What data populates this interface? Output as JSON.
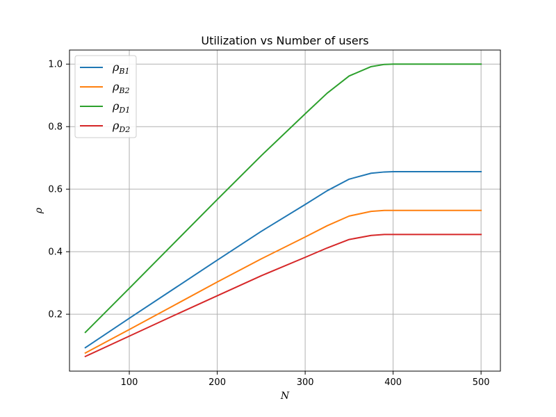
{
  "chart_data": {
    "type": "line",
    "title": "Utilization vs Number of users",
    "xlabel": "N",
    "ylabel": "ρ",
    "xlim": [
      32,
      522
    ],
    "ylim": [
      0.018,
      1.045
    ],
    "xticks": [
      100,
      200,
      300,
      400,
      500
    ],
    "yticks": [
      0.2,
      0.4,
      0.6,
      0.8,
      1.0
    ],
    "xtick_labels": [
      "100",
      "200",
      "300",
      "400",
      "500"
    ],
    "ytick_labels": [
      "0.2",
      "0.4",
      "0.6",
      "0.8",
      "1.0"
    ],
    "grid": true,
    "legend_position": "top-left",
    "series": [
      {
        "name": "ρB1",
        "label_main": "ρ",
        "label_sub": "B1",
        "color": "#1f77b4",
        "x": [
          50,
          100,
          150,
          200,
          250,
          300,
          325,
          350,
          375,
          390,
          400,
          420,
          450,
          500
        ],
        "y": [
          0.093,
          0.187,
          0.28,
          0.373,
          0.465,
          0.551,
          0.595,
          0.632,
          0.651,
          0.655,
          0.656,
          0.656,
          0.656,
          0.656
        ]
      },
      {
        "name": "ρB2",
        "label_main": "ρ",
        "label_sub": "B2",
        "color": "#ff7f0e",
        "x": [
          50,
          100,
          150,
          200,
          250,
          300,
          325,
          350,
          375,
          390,
          400,
          420,
          450,
          500
        ],
        "y": [
          0.076,
          0.151,
          0.227,
          0.303,
          0.377,
          0.447,
          0.483,
          0.514,
          0.529,
          0.532,
          0.532,
          0.532,
          0.532,
          0.532
        ]
      },
      {
        "name": "ρD1",
        "label_main": "ρ",
        "label_sub": "D1",
        "color": "#2ca02c",
        "x": [
          50,
          100,
          150,
          200,
          250,
          300,
          325,
          350,
          375,
          390,
          400,
          420,
          450,
          500
        ],
        "y": [
          0.142,
          0.283,
          0.425,
          0.567,
          0.707,
          0.841,
          0.907,
          0.962,
          0.992,
          0.999,
          1.0,
          1.0,
          1.0,
          1.0
        ]
      },
      {
        "name": "ρD2",
        "label_main": "ρ",
        "label_sub": "D2",
        "color": "#d62728",
        "x": [
          50,
          100,
          150,
          200,
          250,
          300,
          325,
          350,
          375,
          390,
          400,
          420,
          450,
          500
        ],
        "y": [
          0.065,
          0.13,
          0.195,
          0.259,
          0.323,
          0.382,
          0.412,
          0.439,
          0.452,
          0.455,
          0.455,
          0.455,
          0.455,
          0.455
        ]
      }
    ]
  }
}
